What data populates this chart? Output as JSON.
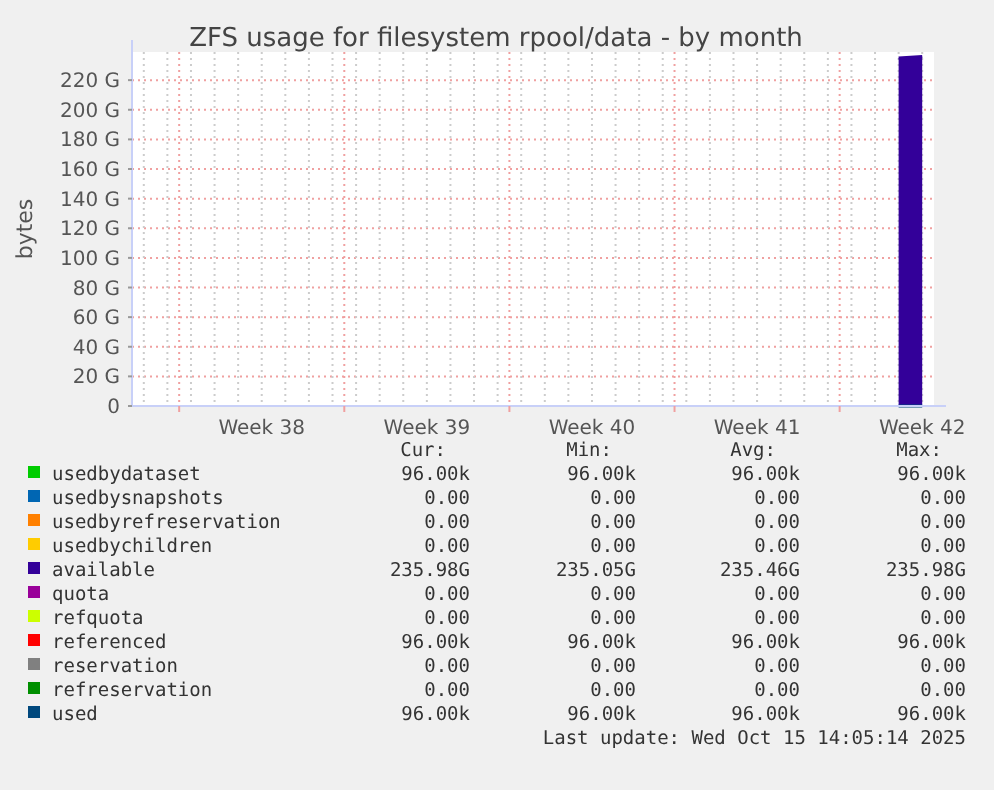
{
  "chart_data": {
    "type": "area",
    "title": "ZFS usage for filesystem rpool/data - by month",
    "ylabel": "bytes",
    "categories": [
      null,
      null,
      null,
      null,
      null,
      "Week 38",
      null,
      null,
      null,
      null,
      null,
      null,
      "Week 39",
      null,
      null,
      null,
      null,
      null,
      null,
      "Week 40",
      null,
      null,
      null,
      null,
      null,
      null,
      "Week 41",
      null,
      null,
      null,
      null,
      null,
      null,
      "Week 42"
    ],
    "ylim": [
      0,
      239
    ],
    "yticks": [
      0,
      {
        "value": 20,
        "label": "20 G"
      },
      {
        "value": 40,
        "label": "40 G"
      },
      {
        "value": 60,
        "label": "60 G"
      },
      {
        "value": 80,
        "label": "80 G"
      },
      {
        "value": 100,
        "label": "100 G"
      },
      {
        "value": 120,
        "label": "120 G"
      },
      {
        "value": 140,
        "label": "140 G"
      },
      {
        "value": 160,
        "label": "160 G"
      },
      {
        "value": 180,
        "label": "180 G"
      },
      {
        "value": 200,
        "label": "200 G"
      },
      {
        "value": 220,
        "label": "220 G"
      }
    ],
    "grid": true,
    "legend": "bottom",
    "series": [
      {
        "name": "usedbydataset",
        "color": "#00cc00",
        "values": [
          null,
          null,
          null,
          null,
          null,
          null,
          null,
          null,
          null,
          null,
          null,
          null,
          null,
          null,
          null,
          null,
          null,
          null,
          null,
          null,
          null,
          null,
          null,
          null,
          null,
          null,
          null,
          null,
          null,
          null,
          null,
          null,
          null,
          null
        ]
      },
      {
        "name": "usedbysnapshots",
        "color": "#0066b3",
        "values": [
          null,
          null,
          null,
          null,
          null,
          null,
          null,
          null,
          null,
          null,
          null,
          null,
          null,
          null,
          null,
          null,
          null,
          null,
          null,
          null,
          null,
          null,
          null,
          null,
          null,
          null,
          null,
          null,
          null,
          null,
          null,
          null,
          null,
          null
        ]
      },
      {
        "name": "usedbyrefreservation",
        "color": "#ff8000",
        "values": [
          null,
          null,
          null,
          null,
          null,
          null,
          null,
          null,
          null,
          null,
          null,
          null,
          null,
          null,
          null,
          null,
          null,
          null,
          null,
          null,
          null,
          null,
          null,
          null,
          null,
          null,
          null,
          null,
          null,
          null,
          null,
          null,
          null,
          null
        ]
      },
      {
        "name": "usedbychildren",
        "color": "#ffcc00",
        "values": [
          null,
          null,
          null,
          null,
          null,
          null,
          null,
          null,
          null,
          null,
          null,
          null,
          null,
          null,
          null,
          null,
          null,
          null,
          null,
          null,
          null,
          null,
          null,
          null,
          null,
          null,
          null,
          null,
          null,
          null,
          null,
          null,
          null,
          null
        ]
      },
      {
        "name": "available",
        "color": "#330099",
        "values": [
          null,
          null,
          null,
          null,
          null,
          null,
          null,
          null,
          null,
          null,
          null,
          null,
          null,
          null,
          null,
          null,
          null,
          null,
          null,
          null,
          null,
          null,
          null,
          null,
          null,
          null,
          null,
          null,
          null,
          null,
          null,
          null,
          235,
          236
        ]
      },
      {
        "name": "quota",
        "color": "#990099",
        "values": [
          null,
          null,
          null,
          null,
          null,
          null,
          null,
          null,
          null,
          null,
          null,
          null,
          null,
          null,
          null,
          null,
          null,
          null,
          null,
          null,
          null,
          null,
          null,
          null,
          null,
          null,
          null,
          null,
          null,
          null,
          null,
          null,
          null,
          null
        ]
      },
      {
        "name": "refquota",
        "color": "#ccff00",
        "values": [
          null,
          null,
          null,
          null,
          null,
          null,
          null,
          null,
          null,
          null,
          null,
          null,
          null,
          null,
          null,
          null,
          null,
          null,
          null,
          null,
          null,
          null,
          null,
          null,
          null,
          null,
          null,
          null,
          null,
          null,
          null,
          null,
          null,
          null
        ]
      },
      {
        "name": "referenced",
        "color": "#ff0000",
        "values": [
          null,
          null,
          null,
          null,
          null,
          null,
          null,
          null,
          null,
          null,
          null,
          null,
          null,
          null,
          null,
          null,
          null,
          null,
          null,
          null,
          null,
          null,
          null,
          null,
          null,
          null,
          null,
          null,
          null,
          null,
          null,
          null,
          null,
          null
        ]
      },
      {
        "name": "reservation",
        "color": "#808080",
        "values": [
          null,
          null,
          null,
          null,
          null,
          null,
          null,
          null,
          null,
          null,
          null,
          null,
          null,
          null,
          null,
          null,
          null,
          null,
          null,
          null,
          null,
          null,
          null,
          null,
          null,
          null,
          null,
          null,
          null,
          null,
          null,
          null,
          null,
          null
        ]
      },
      {
        "name": "refreservation",
        "color": "#008f00",
        "values": [
          null,
          null,
          null,
          null,
          null,
          null,
          null,
          null,
          null,
          null,
          null,
          null,
          null,
          null,
          null,
          null,
          null,
          null,
          null,
          null,
          null,
          null,
          null,
          null,
          null,
          null,
          null,
          null,
          null,
          null,
          null,
          null,
          null,
          null
        ]
      },
      {
        "name": "used",
        "type": "line",
        "color": "#00487d",
        "values": [
          null,
          null,
          null,
          null,
          null,
          null,
          null,
          null,
          null,
          null,
          null,
          null,
          null,
          null,
          null,
          null,
          null,
          null,
          null,
          null,
          null,
          null,
          null,
          null,
          null,
          null,
          null,
          null,
          null,
          null,
          null,
          null,
          0,
          0
        ]
      }
    ],
    "annotations": [
      "Cur:",
      "Min:",
      "Avg:",
      "Max:",
      "96.00k",
      "96.00k",
      "96.00k",
      "96.00k",
      "0.00",
      "0.00",
      "0.00",
      "0.00",
      "0.00",
      "0.00",
      "0.00",
      "0.00",
      "0.00",
      "0.00",
      "0.00",
      "0.00",
      "235.98G",
      "235.05G",
      "235.46G",
      "235.98G",
      "0.00",
      "0.00",
      "0.00",
      "0.00",
      "0.00",
      "0.00",
      "0.00",
      "0.00",
      "96.00k",
      "96.00k",
      "96.00k",
      "96.00k",
      "0.00",
      "0.00",
      "0.00",
      "0.00",
      "0.00",
      "0.00",
      "0.00",
      "0.00",
      "96.00k",
      "96.00k",
      "96.00k",
      "96.00k",
      "Last update: Wed Oct 15 14:05:14 2025"
    ]
  }
}
